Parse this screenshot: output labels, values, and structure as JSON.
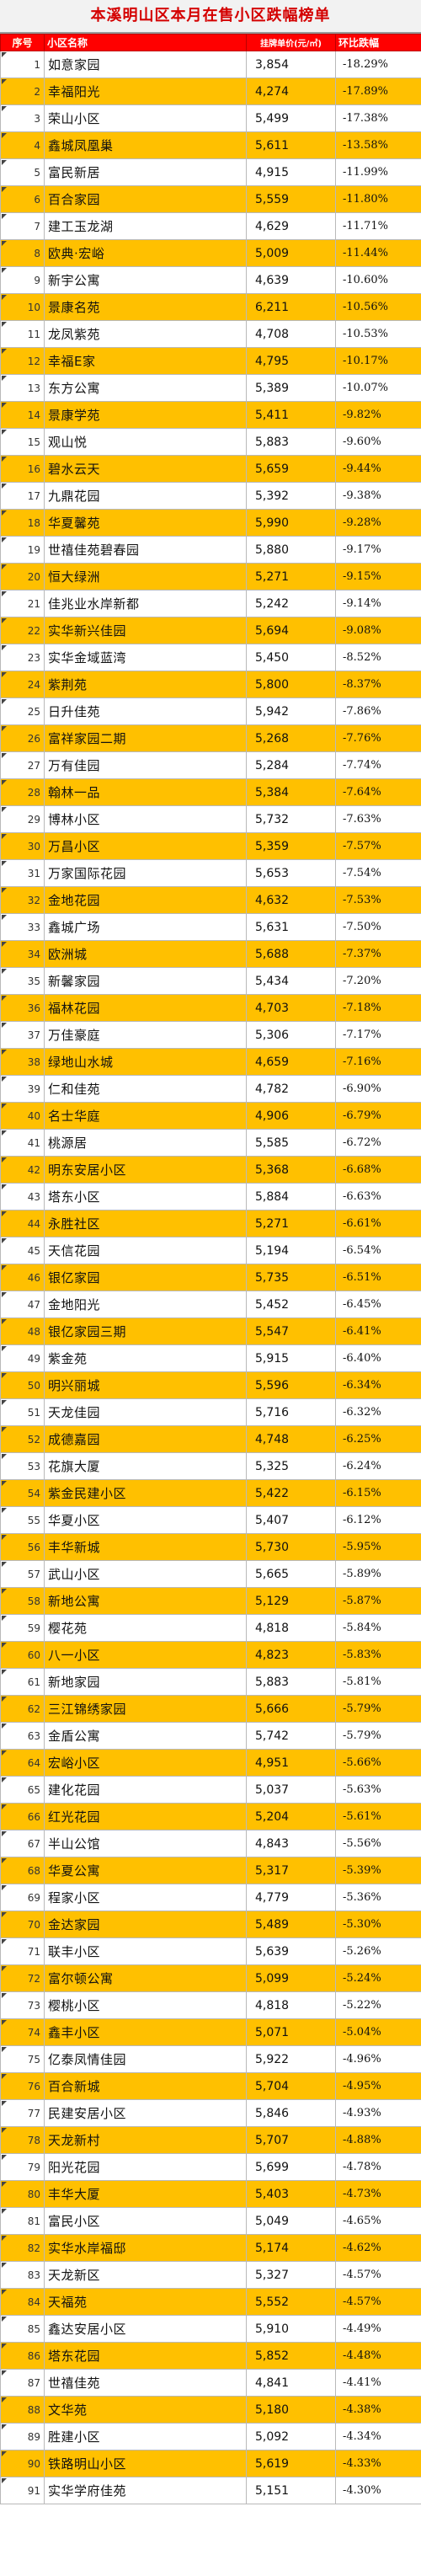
{
  "title": "本溪明山区本月在售小区跌幅榜单",
  "columns": {
    "index": "序号",
    "name": "小区名称",
    "price": "挂牌单价(元/㎡)",
    "change": "环比跌幅"
  },
  "rows": [
    {
      "no": "1",
      "name": "如意家园",
      "price": "3,854",
      "change": "-18.29%"
    },
    {
      "no": "2",
      "name": "幸福阳光",
      "price": "4,274",
      "change": "-17.89%"
    },
    {
      "no": "3",
      "name": "荣山小区",
      "price": "5,499",
      "change": "-17.38%"
    },
    {
      "no": "4",
      "name": "鑫城凤凰巢",
      "price": "5,611",
      "change": "-13.58%"
    },
    {
      "no": "5",
      "name": "富民新居",
      "price": "4,915",
      "change": "-11.99%"
    },
    {
      "no": "6",
      "name": "百合家园",
      "price": "5,559",
      "change": "-11.80%"
    },
    {
      "no": "7",
      "name": "建工玉龙湖",
      "price": "4,629",
      "change": "-11.71%"
    },
    {
      "no": "8",
      "name": "欧典·宏峪",
      "price": "5,009",
      "change": "-11.44%"
    },
    {
      "no": "9",
      "name": "新宇公寓",
      "price": "4,639",
      "change": "-10.60%"
    },
    {
      "no": "10",
      "name": "景康名苑",
      "price": "6,211",
      "change": "-10.56%"
    },
    {
      "no": "11",
      "name": "龙凤紫苑",
      "price": "4,708",
      "change": "-10.53%"
    },
    {
      "no": "12",
      "name": "幸福E家",
      "price": "4,795",
      "change": "-10.17%"
    },
    {
      "no": "13",
      "name": "东方公寓",
      "price": "5,389",
      "change": "-10.07%"
    },
    {
      "no": "14",
      "name": "景康学苑",
      "price": "5,411",
      "change": "-9.82%"
    },
    {
      "no": "15",
      "name": "观山悦",
      "price": "5,883",
      "change": "-9.60%"
    },
    {
      "no": "16",
      "name": "碧水云天",
      "price": "5,659",
      "change": "-9.44%"
    },
    {
      "no": "17",
      "name": "九鼎花园",
      "price": "5,392",
      "change": "-9.38%"
    },
    {
      "no": "18",
      "name": "华夏馨苑",
      "price": "5,990",
      "change": "-9.28%"
    },
    {
      "no": "19",
      "name": "世禧佳苑碧春园",
      "price": "5,880",
      "change": "-9.17%"
    },
    {
      "no": "20",
      "name": "恒大绿洲",
      "price": "5,271",
      "change": "-9.15%"
    },
    {
      "no": "21",
      "name": "佳兆业水岸新都",
      "price": "5,242",
      "change": "-9.14%"
    },
    {
      "no": "22",
      "name": "实华新兴佳园",
      "price": "5,694",
      "change": "-9.08%"
    },
    {
      "no": "23",
      "name": "实华金域蓝湾",
      "price": "5,450",
      "change": "-8.52%"
    },
    {
      "no": "24",
      "name": "紫荆苑",
      "price": "5,800",
      "change": "-8.37%"
    },
    {
      "no": "25",
      "name": "日升佳苑",
      "price": "5,942",
      "change": "-7.86%"
    },
    {
      "no": "26",
      "name": "富祥家园二期",
      "price": "5,268",
      "change": "-7.76%"
    },
    {
      "no": "27",
      "name": "万有佳园",
      "price": "5,284",
      "change": "-7.74%"
    },
    {
      "no": "28",
      "name": "翰林一品",
      "price": "5,384",
      "change": "-7.64%"
    },
    {
      "no": "29",
      "name": "博林小区",
      "price": "5,732",
      "change": "-7.63%"
    },
    {
      "no": "30",
      "name": "万昌小区",
      "price": "5,359",
      "change": "-7.57%"
    },
    {
      "no": "31",
      "name": "万家国际花园",
      "price": "5,653",
      "change": "-7.54%"
    },
    {
      "no": "32",
      "name": "金地花园",
      "price": "4,632",
      "change": "-7.53%"
    },
    {
      "no": "33",
      "name": "鑫城广场",
      "price": "5,631",
      "change": "-7.50%"
    },
    {
      "no": "34",
      "name": "欧洲城",
      "price": "5,688",
      "change": "-7.37%"
    },
    {
      "no": "35",
      "name": "新馨家园",
      "price": "5,434",
      "change": "-7.20%"
    },
    {
      "no": "36",
      "name": "福林花园",
      "price": "4,703",
      "change": "-7.18%"
    },
    {
      "no": "37",
      "name": "万佳豪庭",
      "price": "5,306",
      "change": "-7.17%"
    },
    {
      "no": "38",
      "name": "绿地山水城",
      "price": "4,659",
      "change": "-7.16%"
    },
    {
      "no": "39",
      "name": "仁和佳苑",
      "price": "4,782",
      "change": "-6.90%"
    },
    {
      "no": "40",
      "name": "名士华庭",
      "price": "4,906",
      "change": "-6.79%"
    },
    {
      "no": "41",
      "name": "桃源居",
      "price": "5,585",
      "change": "-6.72%"
    },
    {
      "no": "42",
      "name": "明东安居小区",
      "price": "5,368",
      "change": "-6.68%"
    },
    {
      "no": "43",
      "name": "塔东小区",
      "price": "5,884",
      "change": "-6.63%"
    },
    {
      "no": "44",
      "name": "永胜社区",
      "price": "5,271",
      "change": "-6.61%"
    },
    {
      "no": "45",
      "name": "天信花园",
      "price": "5,194",
      "change": "-6.54%"
    },
    {
      "no": "46",
      "name": "银亿家园",
      "price": "5,735",
      "change": "-6.51%"
    },
    {
      "no": "47",
      "name": "金地阳光",
      "price": "5,452",
      "change": "-6.45%"
    },
    {
      "no": "48",
      "name": "银亿家园三期",
      "price": "5,547",
      "change": "-6.41%"
    },
    {
      "no": "49",
      "name": "紫金苑",
      "price": "5,915",
      "change": "-6.40%"
    },
    {
      "no": "50",
      "name": "明兴丽城",
      "price": "5,596",
      "change": "-6.34%"
    },
    {
      "no": "51",
      "name": "天龙佳园",
      "price": "5,716",
      "change": "-6.32%"
    },
    {
      "no": "52",
      "name": "成德嘉园",
      "price": "4,748",
      "change": "-6.25%"
    },
    {
      "no": "53",
      "name": "花旗大厦",
      "price": "5,325",
      "change": "-6.24%"
    },
    {
      "no": "54",
      "name": "紫金民建小区",
      "price": "5,422",
      "change": "-6.15%"
    },
    {
      "no": "55",
      "name": "华夏小区",
      "price": "5,407",
      "change": "-6.12%"
    },
    {
      "no": "56",
      "name": "丰华新城",
      "price": "5,730",
      "change": "-5.95%"
    },
    {
      "no": "57",
      "name": "武山小区",
      "price": "5,665",
      "change": "-5.89%"
    },
    {
      "no": "58",
      "name": "新地公寓",
      "price": "5,129",
      "change": "-5.87%"
    },
    {
      "no": "59",
      "name": "樱花苑",
      "price": "4,818",
      "change": "-5.84%"
    },
    {
      "no": "60",
      "name": "八一小区",
      "price": "4,823",
      "change": "-5.83%"
    },
    {
      "no": "61",
      "name": "新地家园",
      "price": "5,883",
      "change": "-5.81%"
    },
    {
      "no": "62",
      "name": "三江锦绣家园",
      "price": "5,666",
      "change": "-5.79%"
    },
    {
      "no": "63",
      "name": "金盾公寓",
      "price": "5,742",
      "change": "-5.79%"
    },
    {
      "no": "64",
      "name": "宏峪小区",
      "price": "4,951",
      "change": "-5.66%"
    },
    {
      "no": "65",
      "name": "建化花园",
      "price": "5,037",
      "change": "-5.63%"
    },
    {
      "no": "66",
      "name": "红光花园",
      "price": "5,204",
      "change": "-5.61%"
    },
    {
      "no": "67",
      "name": "半山公馆",
      "price": "4,843",
      "change": "-5.56%"
    },
    {
      "no": "68",
      "name": "华夏公寓",
      "price": "5,317",
      "change": "-5.39%"
    },
    {
      "no": "69",
      "name": "程家小区",
      "price": "4,779",
      "change": "-5.36%"
    },
    {
      "no": "70",
      "name": "金达家园",
      "price": "5,489",
      "change": "-5.30%"
    },
    {
      "no": "71",
      "name": "联丰小区",
      "price": "5,639",
      "change": "-5.26%"
    },
    {
      "no": "72",
      "name": "富尔顿公寓",
      "price": "5,099",
      "change": "-5.24%"
    },
    {
      "no": "73",
      "name": "樱桃小区",
      "price": "4,818",
      "change": "-5.22%"
    },
    {
      "no": "74",
      "name": "鑫丰小区",
      "price": "5,071",
      "change": "-5.04%"
    },
    {
      "no": "75",
      "name": "亿泰凤情佳园",
      "price": "5,922",
      "change": "-4.96%"
    },
    {
      "no": "76",
      "name": "百合新城",
      "price": "5,704",
      "change": "-4.95%"
    },
    {
      "no": "77",
      "name": "民建安居小区",
      "price": "5,846",
      "change": "-4.93%"
    },
    {
      "no": "78",
      "name": "天龙新村",
      "price": "5,707",
      "change": "-4.88%"
    },
    {
      "no": "79",
      "name": "阳光花园",
      "price": "5,699",
      "change": "-4.78%"
    },
    {
      "no": "80",
      "name": "丰华大厦",
      "price": "5,403",
      "change": "-4.73%"
    },
    {
      "no": "81",
      "name": "富民小区",
      "price": "5,049",
      "change": "-4.65%"
    },
    {
      "no": "82",
      "name": "实华水岸福邸",
      "price": "5,174",
      "change": "-4.62%"
    },
    {
      "no": "83",
      "name": "天龙新区",
      "price": "5,327",
      "change": "-4.57%"
    },
    {
      "no": "84",
      "name": "天福苑",
      "price": "5,552",
      "change": "-4.57%"
    },
    {
      "no": "85",
      "name": "鑫达安居小区",
      "price": "5,910",
      "change": "-4.49%"
    },
    {
      "no": "86",
      "name": "塔东花园",
      "price": "5,852",
      "change": "-4.48%"
    },
    {
      "no": "87",
      "name": "世禧佳苑",
      "price": "4,841",
      "change": "-4.41%"
    },
    {
      "no": "88",
      "name": "文华苑",
      "price": "5,180",
      "change": "-4.38%"
    },
    {
      "no": "89",
      "name": "胜建小区",
      "price": "5,092",
      "change": "-4.34%"
    },
    {
      "no": "90",
      "name": "铁路明山小区",
      "price": "5,619",
      "change": "-4.33%"
    },
    {
      "no": "91",
      "name": "实华学府佳苑",
      "price": "5,151",
      "change": "-4.30%"
    }
  ]
}
